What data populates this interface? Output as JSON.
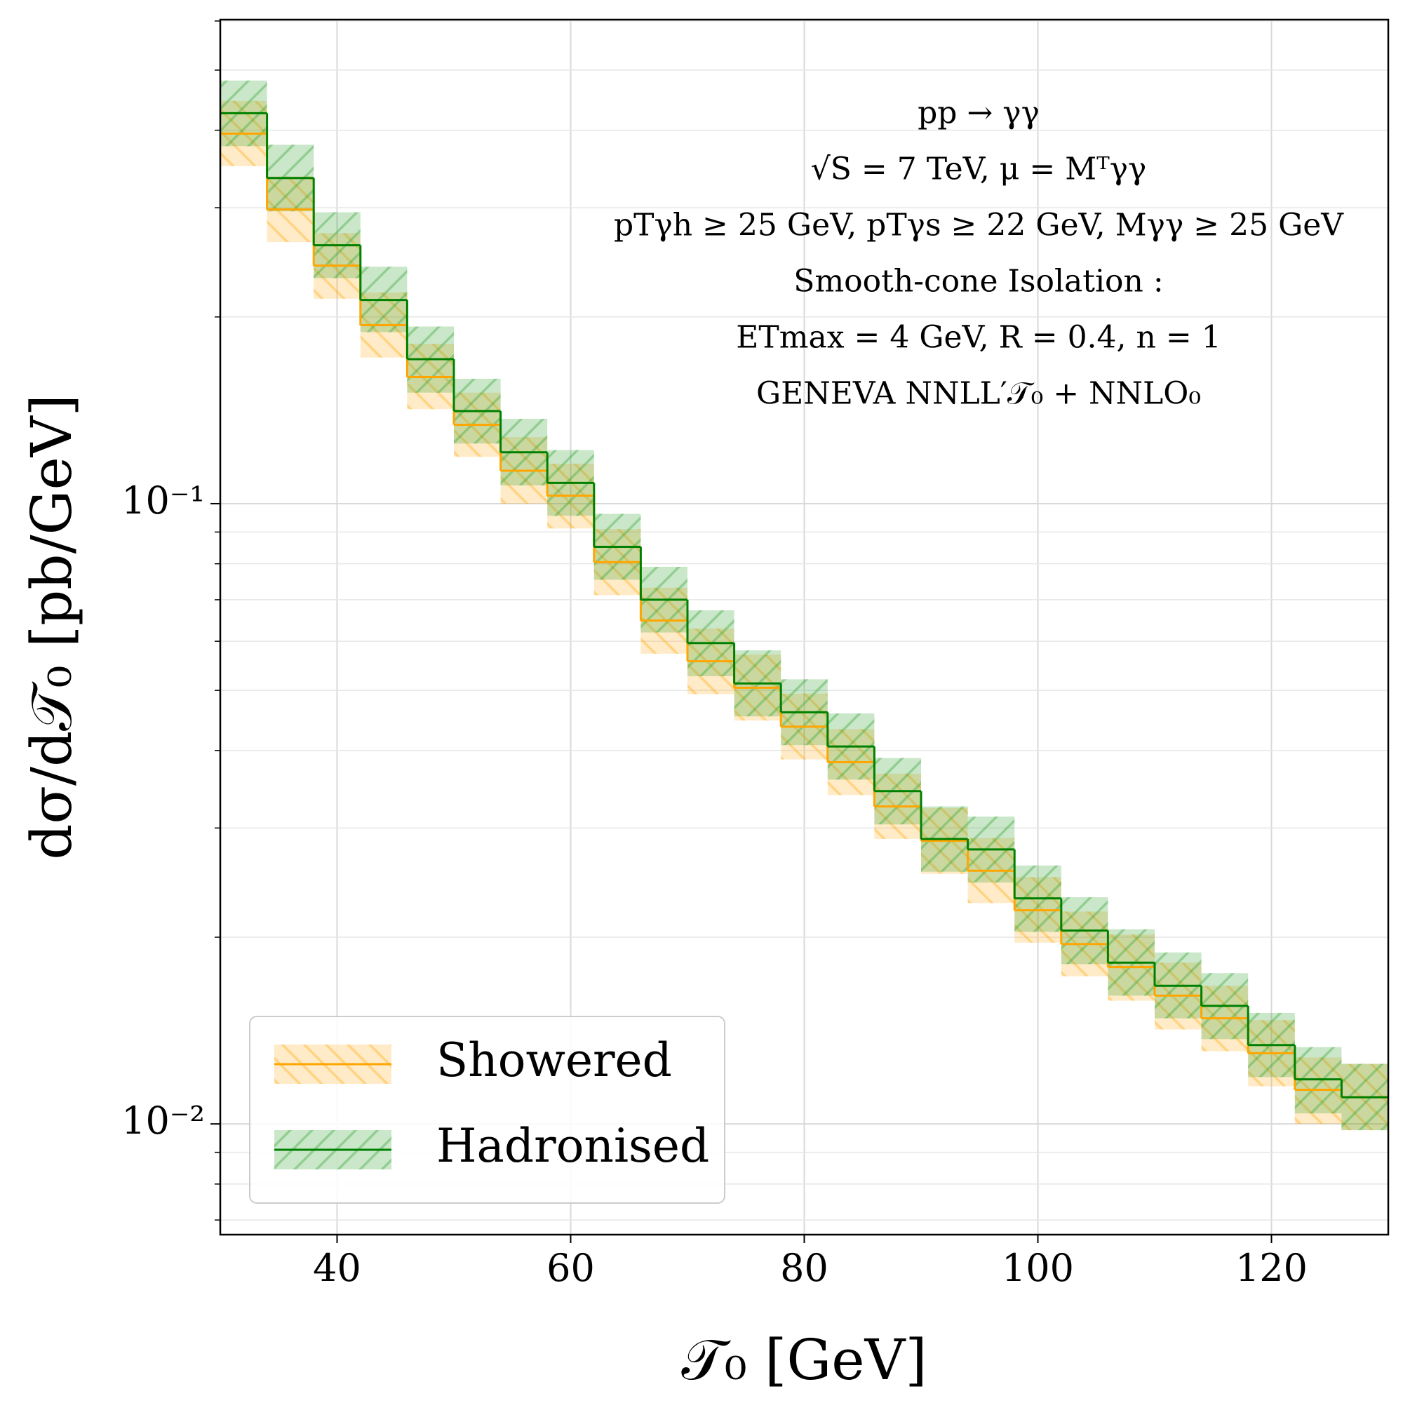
{
  "chart_data": {
    "type": "histogram",
    "xlabel": "𝒯₀   [GeV]",
    "ylabel": "dσ/d𝒯₀   [pb/GeV]",
    "annotations": [
      "pp → γγ",
      "√S = 7 TeV, μ = Mᵀγγ",
      "pTγh ≥ 25 GeV,  pTγs ≥ 22 GeV,  Mγγ ≥ 25 GeV",
      "Smooth-cone Isolation :",
      "ETmax = 4 GeV,  R = 0.4,  n = 1",
      "GENEVA   NNLL′𝒯₀ + NNLO₀"
    ],
    "bins": [
      30,
      34,
      38,
      42,
      46,
      50,
      54,
      58,
      62,
      66,
      70,
      74,
      78,
      82,
      86,
      90,
      94,
      98,
      102,
      106,
      110,
      114,
      118,
      122,
      126,
      130
    ],
    "series": [
      {
        "name": "Showered",
        "color": "#ffa500",
        "values": [
          0.395,
          0.298,
          0.242,
          0.194,
          0.16,
          0.134,
          0.113,
          0.103,
          0.0805,
          0.0648,
          0.0557,
          0.0505,
          0.0437,
          0.0383,
          0.0325,
          0.0286,
          0.0256,
          0.0221,
          0.0195,
          0.0179,
          0.0161,
          0.0148,
          0.013,
          0.01135,
          0.01104
        ],
        "upper": [
          0.446,
          0.337,
          0.273,
          0.219,
          0.181,
          0.151,
          0.128,
          0.116,
          0.091,
          0.0732,
          0.0629,
          0.0571,
          0.0494,
          0.0433,
          0.0367,
          0.0323,
          0.0289,
          0.025,
          0.022,
          0.0202,
          0.0182,
          0.0167,
          0.0147,
          0.0128,
          0.0125
        ],
        "lower": [
          0.35,
          0.264,
          0.214,
          0.172,
          0.142,
          0.119,
          0.1,
          0.0912,
          0.0712,
          0.0573,
          0.0493,
          0.0447,
          0.0387,
          0.0339,
          0.0288,
          0.0253,
          0.0227,
          0.0196,
          0.0173,
          0.0158,
          0.0142,
          0.0131,
          0.0115,
          0.01,
          0.00977
        ]
      },
      {
        "name": "Hadronised",
        "color": "#008000",
        "values": [
          0.426,
          0.335,
          0.261,
          0.213,
          0.171,
          0.141,
          0.121,
          0.108,
          0.0852,
          0.07,
          0.0596,
          0.0513,
          0.0461,
          0.0406,
          0.0344,
          0.0288,
          0.0277,
          0.0231,
          0.0205,
          0.0182,
          0.0167,
          0.0155,
          0.0134,
          0.0118,
          0.01104
        ],
        "upper": [
          0.481,
          0.379,
          0.295,
          0.241,
          0.193,
          0.159,
          0.137,
          0.122,
          0.0963,
          0.0791,
          0.0673,
          0.058,
          0.0521,
          0.0459,
          0.0389,
          0.0325,
          0.0313,
          0.0261,
          0.0232,
          0.0206,
          0.0189,
          0.0175,
          0.0151,
          0.0133,
          0.0125
        ],
        "lower": [
          0.377,
          0.296,
          0.231,
          0.189,
          0.151,
          0.125,
          0.107,
          0.0956,
          0.0754,
          0.062,
          0.0527,
          0.0454,
          0.0408,
          0.0359,
          0.0304,
          0.0255,
          0.0245,
          0.0204,
          0.0181,
          0.0161,
          0.0148,
          0.0137,
          0.0119,
          0.0104,
          0.00977
        ]
      }
    ],
    "xlim": [
      30,
      130
    ],
    "xticks": [
      40,
      60,
      80,
      100,
      120
    ],
    "ylim": [
      0.00663,
      0.603
    ],
    "ylog": true,
    "yticks": [
      {
        "value": 0.01,
        "label": "10⁻²"
      },
      {
        "value": 0.1,
        "label": "10⁻¹"
      }
    ],
    "yticks_minor": [
      0.007,
      0.008,
      0.009,
      0.02,
      0.03,
      0.04,
      0.05,
      0.06,
      0.07,
      0.08,
      0.09,
      0.2,
      0.3,
      0.4,
      0.5,
      0.6
    ],
    "grid": true,
    "legend": "lower left"
  }
}
